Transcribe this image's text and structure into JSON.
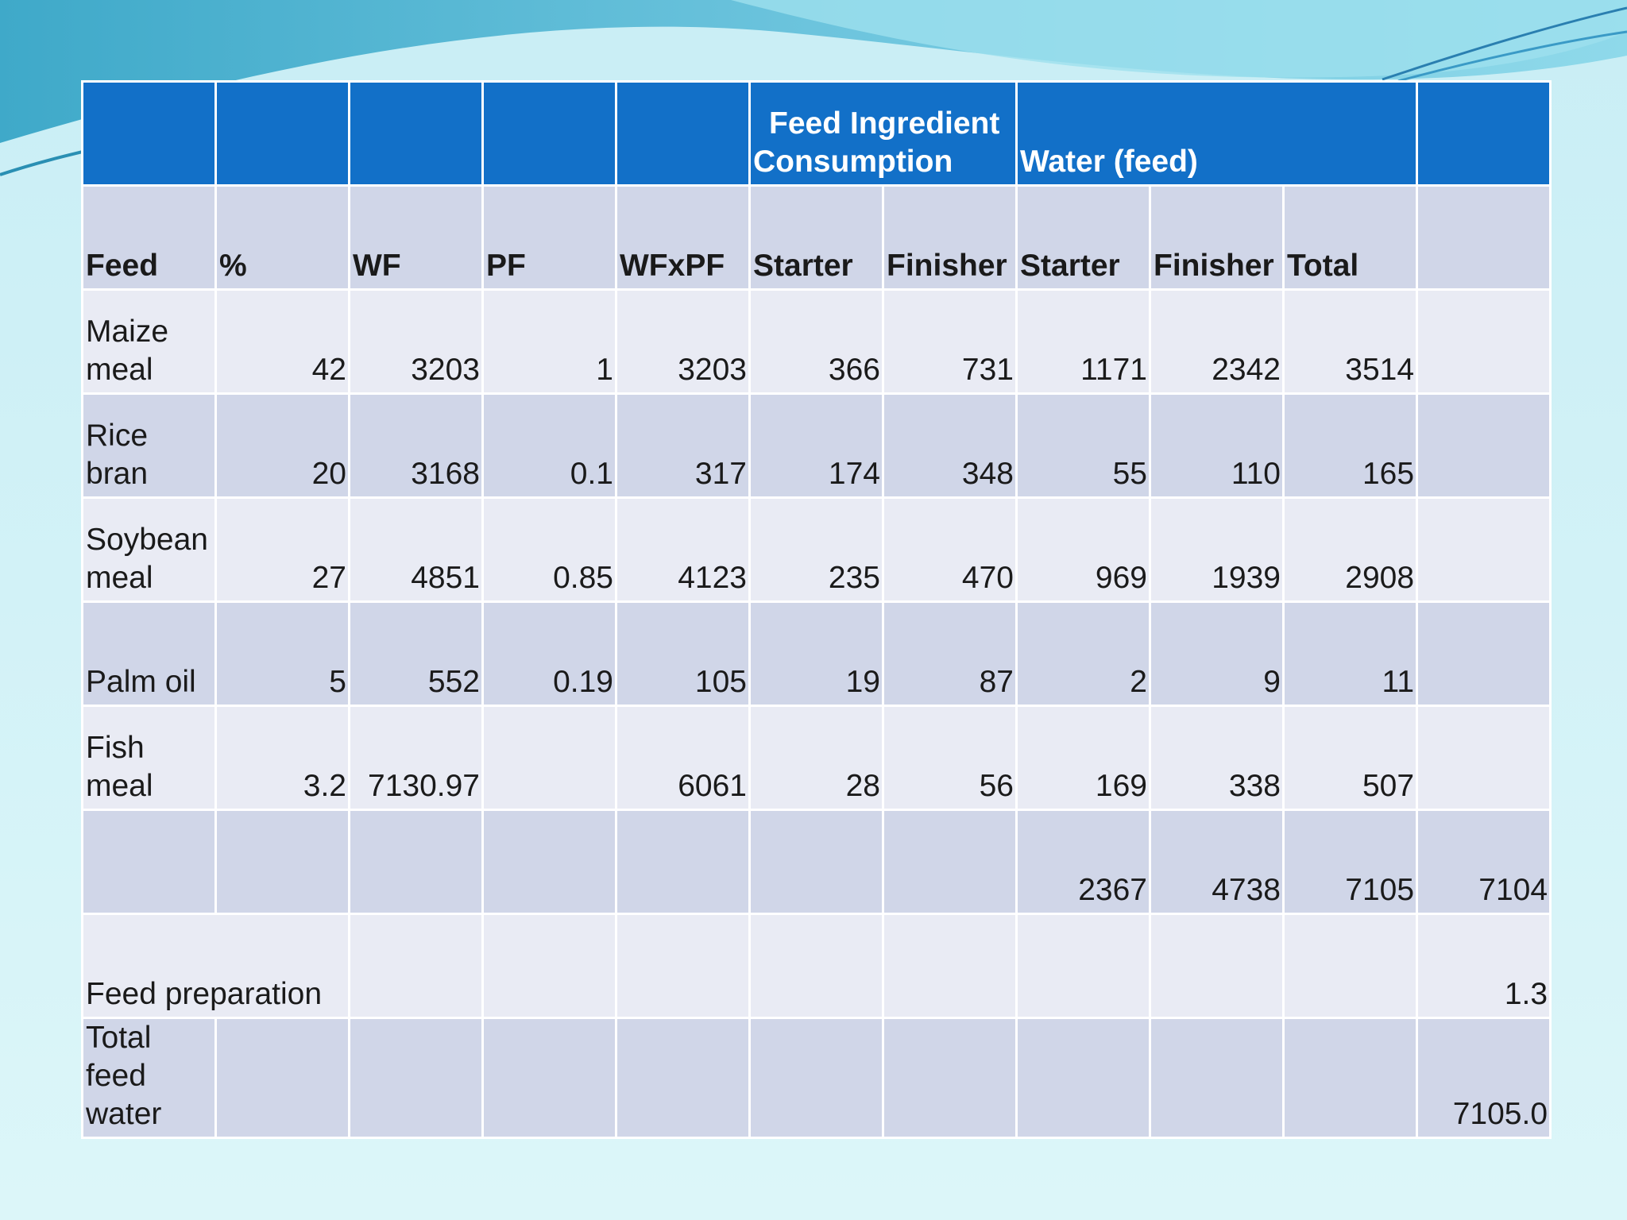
{
  "table": {
    "group_headers": {
      "consumption": "Feed Ingredient Consumption",
      "water": "Water (feed)"
    },
    "columns": [
      "Feed",
      "%",
      "WF",
      "PF",
      "WFxPF",
      "Starter",
      "Finisher",
      "Starter",
      "Finisher",
      "Total",
      ""
    ],
    "rows": [
      [
        "Maize meal",
        "42",
        "3203",
        "1",
        "3203",
        "366",
        "731",
        "1171",
        "2342",
        "3514",
        ""
      ],
      [
        "Rice bran",
        "20",
        "3168",
        "0.1",
        "317",
        "174",
        "348",
        "55",
        "110",
        "165",
        ""
      ],
      [
        "Soybean meal",
        "27",
        "4851",
        "0.85",
        "4123",
        "235",
        "470",
        "969",
        "1939",
        "2908",
        ""
      ],
      [
        "Palm oil",
        "5",
        "552",
        "0.19",
        "105",
        "19",
        "87",
        "2",
        "9",
        "11",
        ""
      ],
      [
        "Fish meal",
        "3.2",
        "7130.97",
        "",
        "6061",
        "28",
        "56",
        "169",
        "338",
        "507",
        ""
      ],
      [
        "",
        "",
        "",
        "",
        "",
        "",
        "",
        "2367",
        "4738",
        "7105",
        "7104"
      ]
    ],
    "feed_preparation": {
      "label": "Feed preparation",
      "value": "1.3"
    },
    "total_feed_water": {
      "label": "Total feed water",
      "value": "7105.0"
    }
  }
}
